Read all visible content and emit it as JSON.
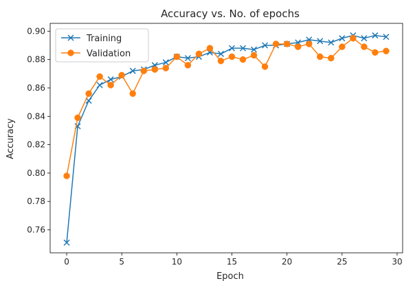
{
  "chart_data": {
    "type": "line",
    "title": "Accuracy vs. No. of epochs",
    "xlabel": "Epoch",
    "ylabel": "Accuracy",
    "xlim": [
      -1.5,
      30.5
    ],
    "ylim": [
      0.7438,
      0.9055
    ],
    "x_ticks": [
      0,
      5,
      10,
      15,
      20,
      25,
      30
    ],
    "y_ticks": [
      0.76,
      0.78,
      0.8,
      0.82,
      0.84,
      0.86,
      0.88,
      0.9
    ],
    "grid": false,
    "legend_position": "upper-left",
    "x": [
      0,
      1,
      2,
      3,
      4,
      5,
      6,
      7,
      8,
      9,
      10,
      11,
      12,
      13,
      14,
      15,
      16,
      17,
      18,
      19,
      20,
      21,
      22,
      23,
      24,
      25,
      26,
      27,
      28,
      29
    ],
    "series": [
      {
        "name": "Training",
        "color": "#1f77b4",
        "marker": "x",
        "values": [
          0.751,
          0.833,
          0.851,
          0.862,
          0.866,
          0.868,
          0.872,
          0.873,
          0.876,
          0.878,
          0.882,
          0.881,
          0.882,
          0.885,
          0.884,
          0.888,
          0.888,
          0.887,
          0.89,
          0.89,
          0.891,
          0.892,
          0.894,
          0.893,
          0.892,
          0.895,
          0.897,
          0.895,
          0.897,
          0.896
        ]
      },
      {
        "name": "Validation",
        "color": "#ff7f0e",
        "marker": "o",
        "values": [
          0.798,
          0.839,
          0.856,
          0.868,
          0.862,
          0.869,
          0.856,
          0.872,
          0.873,
          0.874,
          0.882,
          0.876,
          0.884,
          0.888,
          0.879,
          0.882,
          0.88,
          0.883,
          0.875,
          0.891,
          0.891,
          0.889,
          0.891,
          0.882,
          0.881,
          0.889,
          0.895,
          0.889,
          0.885,
          0.886
        ]
      }
    ]
  }
}
